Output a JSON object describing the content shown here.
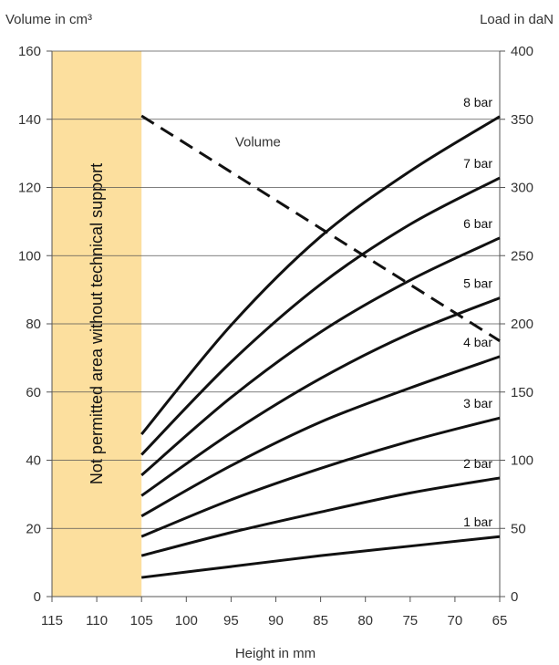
{
  "chart_data": {
    "type": "line",
    "left_axis_title": "Volume in cm³",
    "right_axis_title": "Load in daN",
    "xlabel": "Height in mm",
    "x_ticks": [
      115,
      110,
      105,
      100,
      95,
      90,
      85,
      80,
      75,
      70,
      65
    ],
    "xlim": [
      115,
      65
    ],
    "y_left_ticks": [
      0,
      20,
      40,
      60,
      80,
      100,
      120,
      140,
      160
    ],
    "ylim_left": [
      0,
      160
    ],
    "y_right_ticks": [
      0,
      50,
      100,
      150,
      200,
      250,
      300,
      350,
      400
    ],
    "ylim_right": [
      0,
      400
    ],
    "grid": "horizontal",
    "restricted_zone": {
      "x_from": 115,
      "x_to": 105,
      "label": "Not permitted area without technical support",
      "color": "#fcdf9e"
    },
    "volume_series": {
      "name": "Volume",
      "axis": "left",
      "style": "dashed",
      "x": [
        105,
        65
      ],
      "y": [
        141,
        75
      ]
    },
    "load_series": [
      {
        "name": "1 bar",
        "axis": "right",
        "x": [
          105,
          95,
          85,
          75,
          65
        ],
        "y": [
          14,
          22,
          30,
          37,
          44
        ]
      },
      {
        "name": "2 bar",
        "axis": "right",
        "x": [
          105,
          95,
          85,
          75,
          65
        ],
        "y": [
          30,
          47,
          62,
          76,
          87
        ]
      },
      {
        "name": "3 bar",
        "axis": "right",
        "x": [
          105,
          95,
          85,
          75,
          65
        ],
        "y": [
          44,
          71,
          94,
          114,
          131
        ]
      },
      {
        "name": "4 bar",
        "axis": "right",
        "x": [
          105,
          95,
          85,
          75,
          65
        ],
        "y": [
          59,
          96,
          128,
          153,
          176
        ]
      },
      {
        "name": "5 bar",
        "axis": "right",
        "x": [
          105,
          95,
          85,
          75,
          65
        ],
        "y": [
          74,
          120,
          160,
          193,
          219
        ]
      },
      {
        "name": "6 bar",
        "axis": "right",
        "x": [
          105,
          95,
          85,
          75,
          65
        ],
        "y": [
          89,
          146,
          194,
          232,
          263
        ]
      },
      {
        "name": "7 bar",
        "axis": "right",
        "x": [
          105,
          95,
          85,
          75,
          65
        ],
        "y": [
          104,
          172,
          229,
          273,
          307
        ]
      },
      {
        "name": "8 bar",
        "axis": "right",
        "x": [
          105,
          95,
          85,
          75,
          65
        ],
        "y": [
          119,
          199,
          264,
          312,
          352
        ]
      }
    ],
    "colors": {
      "line": "#111111",
      "grid": "#555555",
      "axis": "#555555",
      "text": "#333333"
    }
  }
}
